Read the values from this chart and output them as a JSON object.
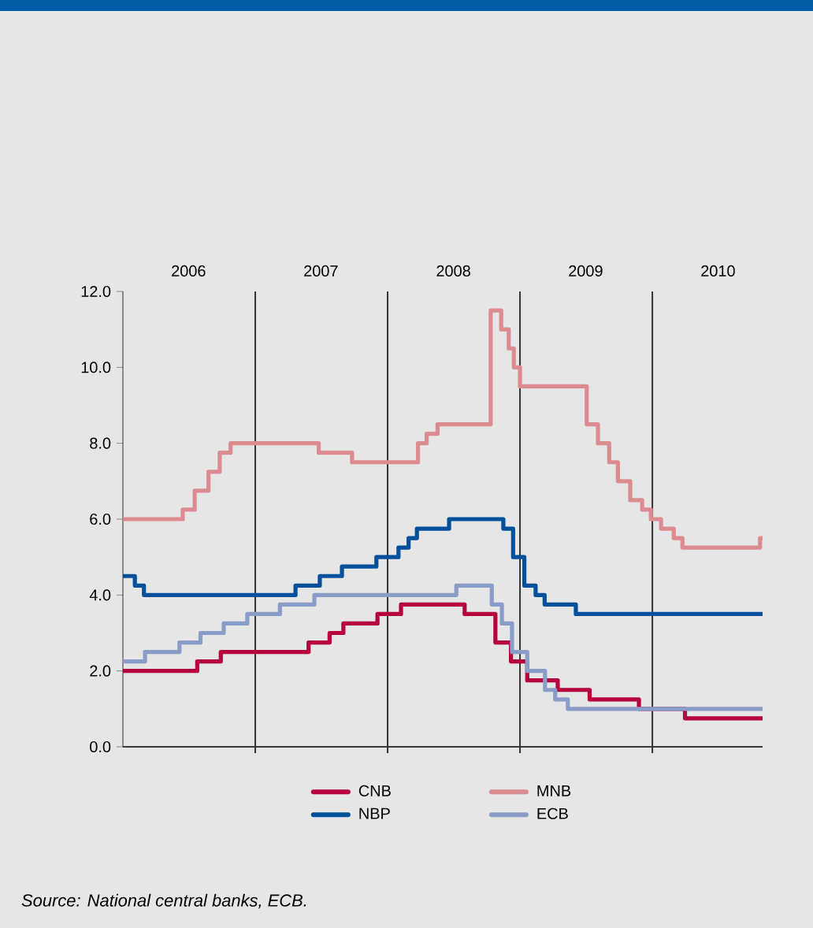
{
  "chart_data": {
    "type": "step",
    "series": [
      {
        "name": "CNB",
        "color": "#b5003c",
        "x": [
          "2006-01-01",
          "2006-07-25",
          "2006-09-28",
          "2007-05-28",
          "2007-07-25",
          "2007-09-01",
          "2007-12-04",
          "2008-02-07",
          "2008-08-01",
          "2008-10-25",
          "2008-12-07",
          "2009-01-21",
          "2009-04-15",
          "2009-07-12",
          "2009-11-25",
          "2010-04-01",
          "2010-11-01"
        ],
        "values": [
          2.0,
          2.25,
          2.5,
          2.75,
          3.0,
          3.25,
          3.5,
          3.75,
          3.5,
          2.75,
          2.25,
          1.75,
          1.5,
          1.25,
          1.0,
          0.75,
          0.75
        ]
      },
      {
        "name": "MNB",
        "color": "#dc8c90",
        "x": [
          "2006-01-01",
          "2006-06-15",
          "2006-07-18",
          "2006-08-25",
          "2006-09-25",
          "2006-10-25",
          "2007-06-25",
          "2007-09-25",
          "2008-03-25",
          "2008-04-18",
          "2008-05-18",
          "2008-10-12",
          "2008-11-10",
          "2008-12-01",
          "2008-12-15",
          "2009-01-01",
          "2009-07-04",
          "2009-08-04",
          "2009-09-04",
          "2009-09-28",
          "2009-11-01",
          "2009-12-04",
          "2009-12-28",
          "2010-01-25",
          "2010-03-01",
          "2010-03-25",
          "2010-10-25",
          "2010-11-01"
        ],
        "values": [
          6.0,
          6.25,
          6.75,
          7.25,
          7.75,
          8.0,
          7.75,
          7.5,
          8.0,
          8.25,
          8.5,
          11.5,
          11.0,
          10.5,
          10.0,
          9.5,
          8.5,
          8.0,
          7.5,
          7.0,
          6.5,
          6.25,
          6.0,
          5.75,
          5.5,
          5.25,
          5.5,
          5.5
        ]
      },
      {
        "name": "NBP",
        "color": "#00509b",
        "x": [
          "2006-01-01",
          "2006-02-03",
          "2006-02-28",
          "2007-04-22",
          "2007-06-28",
          "2007-08-28",
          "2007-12-01",
          "2008-01-31",
          "2008-02-28",
          "2008-03-22",
          "2008-06-19",
          "2008-11-16",
          "2008-12-13",
          "2009-01-13",
          "2009-02-13",
          "2009-03-10",
          "2009-06-04",
          "2010-11-01"
        ],
        "values": [
          4.5,
          4.25,
          4.0,
          4.25,
          4.5,
          4.75,
          5.0,
          5.25,
          5.5,
          5.75,
          6.0,
          5.75,
          5.0,
          4.25,
          4.0,
          3.75,
          3.5,
          3.5
        ]
      },
      {
        "name": "ECB",
        "color": "#8a9dc8",
        "x": [
          "2006-01-01",
          "2006-03-03",
          "2006-06-06",
          "2006-08-03",
          "2006-10-06",
          "2006-12-10",
          "2007-03-10",
          "2007-06-13",
          "2008-07-09",
          "2008-10-15",
          "2008-11-12",
          "2008-12-10",
          "2009-01-21",
          "2009-03-11",
          "2009-04-08",
          "2009-05-13",
          "2010-11-01"
        ],
        "values": [
          2.25,
          2.5,
          2.75,
          3.0,
          3.25,
          3.5,
          3.75,
          4.0,
          4.25,
          3.75,
          3.25,
          2.5,
          2.0,
          1.5,
          1.25,
          1.0,
          1.0
        ]
      }
    ],
    "xlim": [
      "2006-01-01",
      "2010-11-01"
    ],
    "xticks": [
      {
        "value": "2006-07-01",
        "label": "2006"
      },
      {
        "value": "2007-07-01",
        "label": "2007"
      },
      {
        "value": "2008-07-01",
        "label": "2008"
      },
      {
        "value": "2009-07-01",
        "label": "2009"
      },
      {
        "value": "2010-07-01",
        "label": "2010"
      }
    ],
    "ylim": [
      0,
      12
    ],
    "yticks": [
      {
        "value": 0,
        "label": "0.0"
      },
      {
        "value": 2,
        "label": "2.0"
      },
      {
        "value": 4,
        "label": "4.0"
      },
      {
        "value": 6,
        "label": "6.0"
      },
      {
        "value": 8,
        "label": "8.0"
      },
      {
        "value": 10,
        "label": "10.0"
      },
      {
        "value": 12,
        "label": "12.0"
      }
    ],
    "ref_lines": [
      {
        "axis": "x",
        "value": "2007-01-01",
        "color": "#333333"
      },
      {
        "axis": "x",
        "value": "2008-01-01",
        "color": "#333333"
      },
      {
        "axis": "x",
        "value": "2009-01-01",
        "color": "#333333"
      },
      {
        "axis": "x",
        "value": "2010-01-01",
        "color": "#333333"
      }
    ],
    "legend": "bottom",
    "grid": false,
    "marker": "none",
    "line_style": "solid",
    "annotations": [
      "Source: National central banks, ECB."
    ]
  }
}
